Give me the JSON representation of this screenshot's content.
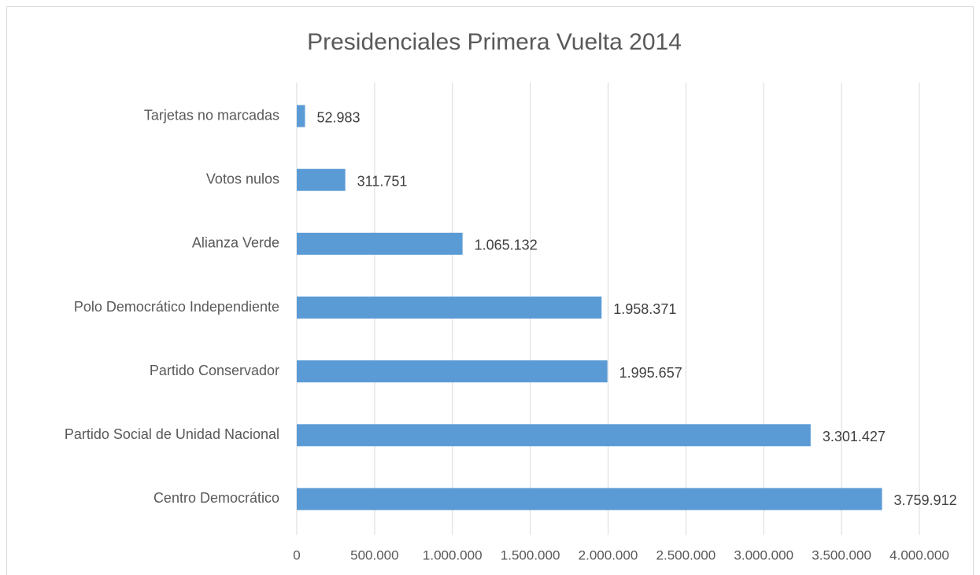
{
  "chart_data": {
    "type": "barh",
    "title": "Presidenciales Primera Vuelta 2014",
    "categories": [
      "Tarjetas no marcadas",
      "Votos nulos",
      "Alianza Verde",
      "Polo Democrático Independiente",
      "Partido Conservador",
      "Partido Social de Unidad Nacional",
      "Centro Democrático"
    ],
    "values": [
      52983,
      311751,
      1065132,
      1958371,
      1995657,
      3301427,
      3759912
    ],
    "value_labels": [
      "52.983",
      "311.751",
      "1.065.132",
      "1.958.371",
      "1.995.657",
      "3.301.427",
      "3.759.912"
    ],
    "color": "#5b9bd5",
    "xlim": [
      0,
      4000000
    ],
    "xticks": [
      0,
      {
        "value": 500000,
        "label": "500.000"
      },
      {
        "value": 1000000,
        "label": "1.000.000"
      },
      {
        "value": 1500000,
        "label": "1.500.000"
      },
      {
        "value": 2000000,
        "label": "2.000.000"
      },
      {
        "value": 2500000,
        "label": "2.500.000"
      },
      {
        "value": 3000000,
        "label": "3.000.000"
      },
      {
        "value": 3500000,
        "label": "3.500.000"
      },
      {
        "value": 4000000,
        "label": "4.000.000"
      }
    ],
    "grid": true
  }
}
